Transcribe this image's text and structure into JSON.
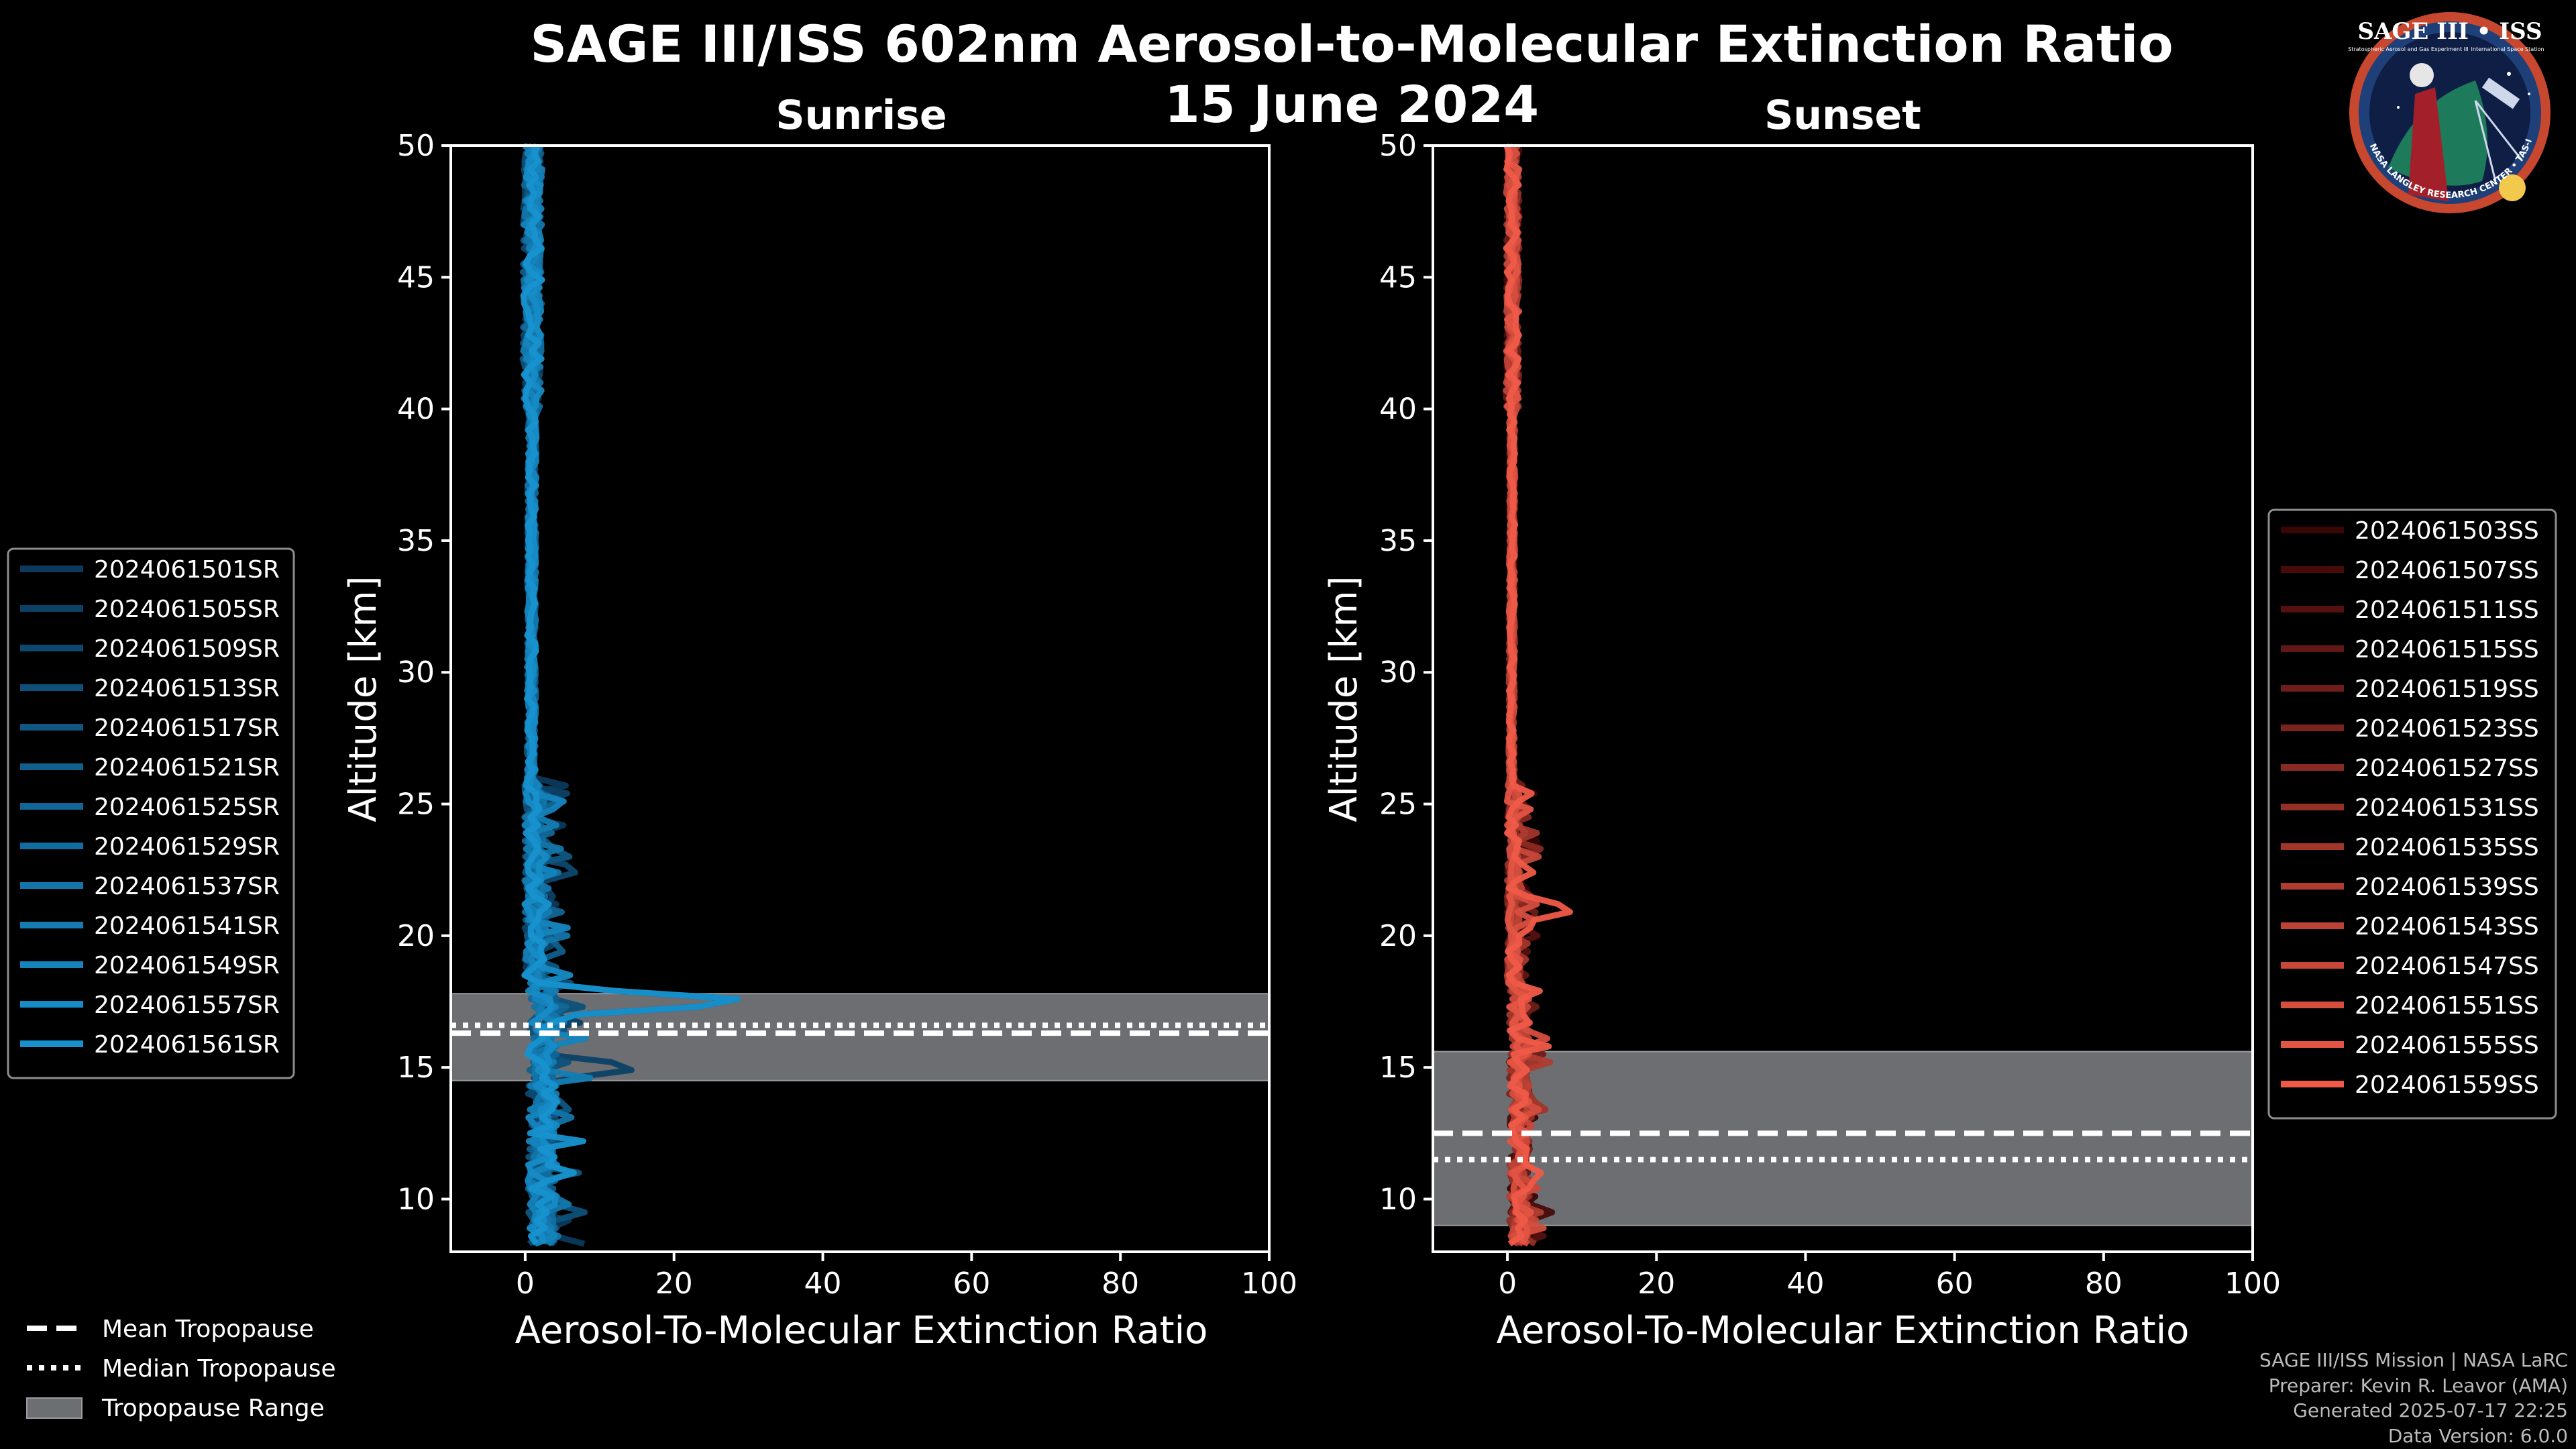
{
  "page": {
    "title_line1": "SAGE III/ISS 602nm Aerosol-to-Molecular Extinction Ratio",
    "title_line2": "15 June 2024",
    "logo_text": "SAGE III • ISS",
    "logo_subtext": "BALL • NASA LANGLEY RESEARCH CENTER • TAS-I • ESA",
    "logo_caption_left": "Stratospheric Aerosol and Gas Experiment III",
    "logo_caption_right": "International Space Station",
    "credits": [
      "SAGE III/ISS Mission | NASA LaRC",
      "Preparer: Kevin R. Leavor (AMA)",
      "Generated 2025-07-17 22:25",
      "Data Version: 6.0.0"
    ]
  },
  "chart_data": [
    {
      "type": "line",
      "title": "Sunrise",
      "xlabel": "Aerosol-To-Molecular Extinction Ratio",
      "ylabel": "Altitude [km]",
      "xlim": [
        -10,
        100
      ],
      "ylim": [
        8,
        50
      ],
      "xticks": [
        "0",
        "20",
        "40",
        "60",
        "80",
        "100"
      ],
      "yticks": [
        "10",
        "15",
        "20",
        "25",
        "30",
        "35",
        "40",
        "45",
        "50"
      ],
      "tropopause": {
        "mean": 16.3,
        "median": 16.6,
        "range": [
          14.5,
          17.8
        ]
      },
      "color_start": "#0b3a5c",
      "color_end": "#1792cf",
      "spikes": [
        {
          "y": 17.5,
          "x": 34
        },
        {
          "y": 15.0,
          "x": 17
        },
        {
          "y": 22.5,
          "x": 8
        },
        {
          "y": 9.5,
          "x": 8
        },
        {
          "y": 13.5,
          "x": 7
        },
        {
          "y": 19.5,
          "x": 6
        }
      ],
      "series": [
        {
          "name": "2024061501SR"
        },
        {
          "name": "2024061505SR"
        },
        {
          "name": "2024061509SR"
        },
        {
          "name": "2024061513SR"
        },
        {
          "name": "2024061517SR"
        },
        {
          "name": "2024061521SR"
        },
        {
          "name": "2024061525SR"
        },
        {
          "name": "2024061529SR"
        },
        {
          "name": "2024061537SR"
        },
        {
          "name": "2024061541SR"
        },
        {
          "name": "2024061549SR"
        },
        {
          "name": "2024061557SR"
        },
        {
          "name": "2024061561SR"
        }
      ]
    },
    {
      "type": "line",
      "title": "Sunset",
      "xlabel": "Aerosol-To-Molecular Extinction Ratio",
      "ylabel": "Altitude [km]",
      "xlim": [
        -10,
        100
      ],
      "ylim": [
        8,
        50
      ],
      "xticks": [
        "0",
        "20",
        "40",
        "60",
        "80",
        "100"
      ],
      "yticks": [
        "10",
        "15",
        "20",
        "25",
        "30",
        "35",
        "40",
        "45",
        "50"
      ],
      "tropopause": {
        "mean": 12.5,
        "median": 11.5,
        "range": [
          9.0,
          15.6
        ]
      },
      "color_start": "#3a0505",
      "color_end": "#ef5a48",
      "spikes": [
        {
          "y": 21.0,
          "x": 10
        },
        {
          "y": 9.5,
          "x": 6
        }
      ],
      "series": [
        {
          "name": "2024061503SS"
        },
        {
          "name": "2024061507SS"
        },
        {
          "name": "2024061511SS"
        },
        {
          "name": "2024061515SS"
        },
        {
          "name": "2024061519SS"
        },
        {
          "name": "2024061523SS"
        },
        {
          "name": "2024061527SS"
        },
        {
          "name": "2024061531SS"
        },
        {
          "name": "2024061535SS"
        },
        {
          "name": "2024061539SS"
        },
        {
          "name": "2024061543SS"
        },
        {
          "name": "2024061547SS"
        },
        {
          "name": "2024061551SS"
        },
        {
          "name": "2024061555SS"
        },
        {
          "name": "2024061559SS"
        }
      ]
    }
  ],
  "tropopause_legend": [
    {
      "label": "Mean Tropopause",
      "style": "dashed"
    },
    {
      "label": "Median Tropopause",
      "style": "dotted"
    },
    {
      "label": "Tropopause Range",
      "style": "patch"
    }
  ]
}
